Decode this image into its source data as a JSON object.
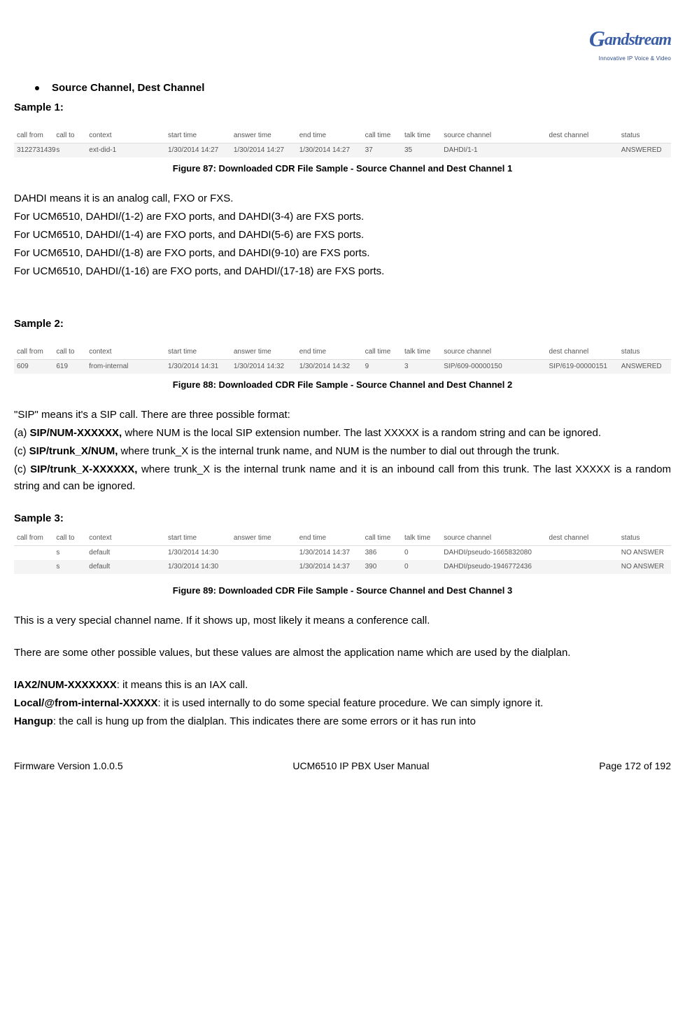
{
  "logo": {
    "main": "Gandstream",
    "sub": "Innovative IP Voice & Video"
  },
  "section_heading": "Source Channel, Dest Channel",
  "sample1_label": "Sample 1:",
  "table1_headers": [
    "call from",
    "call to",
    "context",
    "start time",
    "answer time",
    "end time",
    "call time",
    "talk time",
    "source channel",
    "dest channel",
    "status"
  ],
  "table1_row": [
    "3122731439",
    "s",
    "ext-did-1",
    "1/30/2014 14:27",
    "1/30/2014 14:27",
    "1/30/2014 14:27",
    "37",
    "35",
    "DAHDI/1-1",
    "",
    "ANSWERED"
  ],
  "fig87": "Figure 87: Downloaded CDR File Sample - Source Channel and Dest Channel 1",
  "para_dahdi1": "DAHDI means it is an analog call, FXO or FXS.",
  "para_dahdi2": "For UCM6510, DAHDI/(1-2) are FXO ports, and DAHDI(3-4) are FXS ports.",
  "para_dahdi3": "For UCM6510, DAHDI/(1-4) are FXO ports, and DAHDI(5-6) are FXS ports.",
  "para_dahdi4": "For UCM6510, DAHDI/(1-8) are FXO ports, and DAHDI(9-10) are FXS ports.",
  "para_dahdi5": "For UCM6510, DAHDI/(1-16) are FXO ports, and DAHDI/(17-18) are FXS ports.",
  "sample2_label": "Sample 2:",
  "table2_headers": [
    "call from",
    "call to",
    "context",
    "start time",
    "answer time",
    "end time",
    "call time",
    "talk time",
    "source channel",
    "dest channel",
    "status"
  ],
  "table2_row": [
    "609",
    "619",
    "from-internal",
    "1/30/2014 14:31",
    "1/30/2014 14:32",
    "1/30/2014 14:32",
    "9",
    "3",
    "SIP/609-00000150",
    "SIP/619-00000151",
    "ANSWERED"
  ],
  "fig88": "Figure 88: Downloaded CDR File Sample - Source Channel and Dest Channel 2",
  "sip_intro": "\"SIP\" means it's a SIP call. There are three possible format:",
  "sip_a_pre": "(a) ",
  "sip_a_bold": "SIP/NUM-XXXXXX,",
  "sip_a_post": " where NUM is the local SIP extension number. The last XXXXX is a random string and can be ignored.",
  "sip_c1_pre": "(c) ",
  "sip_c1_bold": "SIP/trunk_X/NUM,",
  "sip_c1_post": " where trunk_X is the internal trunk name, and NUM is the number to dial out through the trunk.",
  "sip_c2_pre": "(c) ",
  "sip_c2_bold": "SIP/trunk_X-XXXXXX,",
  "sip_c2_post": " where trunk_X is the internal trunk name and it is an inbound call from this trunk. The last XXXXX is a random string and can be ignored.",
  "sample3_label": "Sample 3:",
  "table3_headers": [
    "call from",
    "call to",
    "context",
    "start time",
    "answer time",
    "end time",
    "call time",
    "talk time",
    "source channel",
    "dest channel",
    "status"
  ],
  "table3_row1": [
    "",
    "s",
    "default",
    "1/30/2014 14:30",
    "",
    "1/30/2014 14:37",
    "386",
    "0",
    "DAHDI/pseudo-1665832080",
    "",
    "NO ANSWER"
  ],
  "table3_row2": [
    "",
    "s",
    "default",
    "1/30/2014 14:30",
    "",
    "1/30/2014 14:37",
    "390",
    "0",
    "DAHDI/pseudo-1946772436",
    "",
    "NO ANSWER"
  ],
  "fig89": "Figure 89: Downloaded CDR File Sample - Source Channel and Dest Channel 3",
  "conf_para": "This is a very special channel name. If it shows up, most likely it means a conference call.",
  "other_para": "There are some other possible values, but these values are almost the application name which are used by the dialplan.",
  "iax_bold": "IAX2/NUM-XXXXXXX",
  "iax_post": ": it means this is an IAX call.",
  "local_bold": "Local/@from-internal-XXXXX",
  "local_post": ": it is used internally to do some special feature procedure. We can simply ignore it.",
  "hangup_bold": "Hangup",
  "hangup_post": ": the call is hung up from the dialplan. This indicates there are some errors or it has run into",
  "footer_left": "Firmware Version 1.0.0.5",
  "footer_center": "UCM6510 IP PBX User Manual",
  "footer_right": "Page 172 of 192",
  "col_widths": [
    "6%",
    "5%",
    "12%",
    "10%",
    "10%",
    "10%",
    "6%",
    "6%",
    "16%",
    "11%",
    "8%"
  ]
}
